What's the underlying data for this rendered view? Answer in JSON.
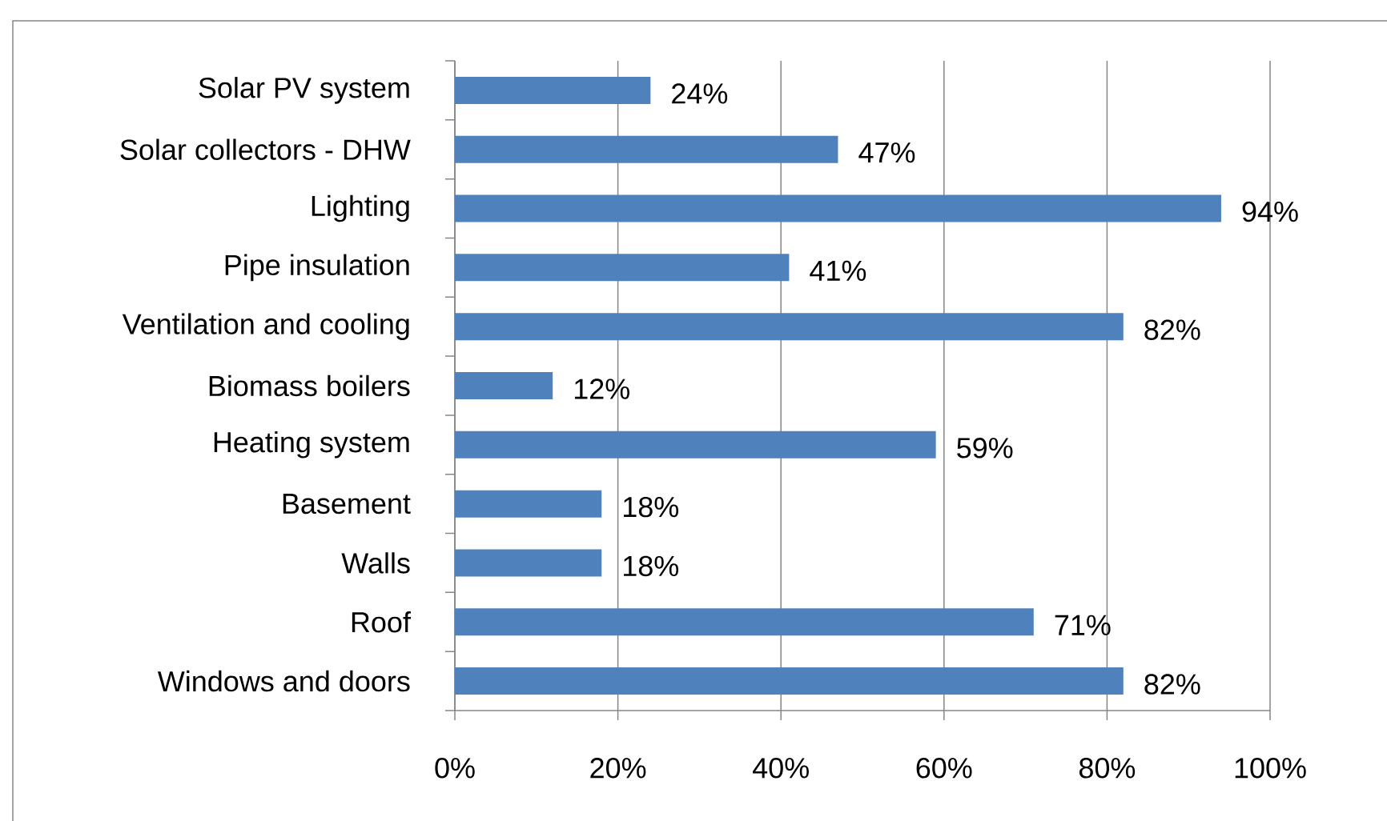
{
  "chart_data": {
    "type": "bar",
    "orientation": "horizontal",
    "categories": [
      "Solar PV system",
      "Solar collectors - DHW",
      "Lighting",
      "Pipe insulation",
      "Ventilation and cooling",
      "Biomass boilers",
      "Heating system",
      "Basement",
      "Walls",
      "Roof",
      "Windows and doors"
    ],
    "values": [
      24,
      47,
      94,
      41,
      82,
      12,
      59,
      18,
      18,
      71,
      82
    ],
    "value_labels": [
      "24%",
      "47%",
      "94%",
      "41%",
      "82%",
      "12%",
      "59%",
      "18%",
      "18%",
      "71%",
      "82%"
    ],
    "color": "#4f81bd",
    "xlim": [
      0,
      100
    ],
    "xticks": [
      {
        "value": 0,
        "label": "0%"
      },
      {
        "value": 20,
        "label": "20%"
      },
      {
        "value": 40,
        "label": "40%"
      },
      {
        "value": 60,
        "label": "60%"
      },
      {
        "value": 80,
        "label": "80%"
      },
      {
        "value": 100,
        "label": "100%"
      }
    ],
    "grid": "x"
  }
}
